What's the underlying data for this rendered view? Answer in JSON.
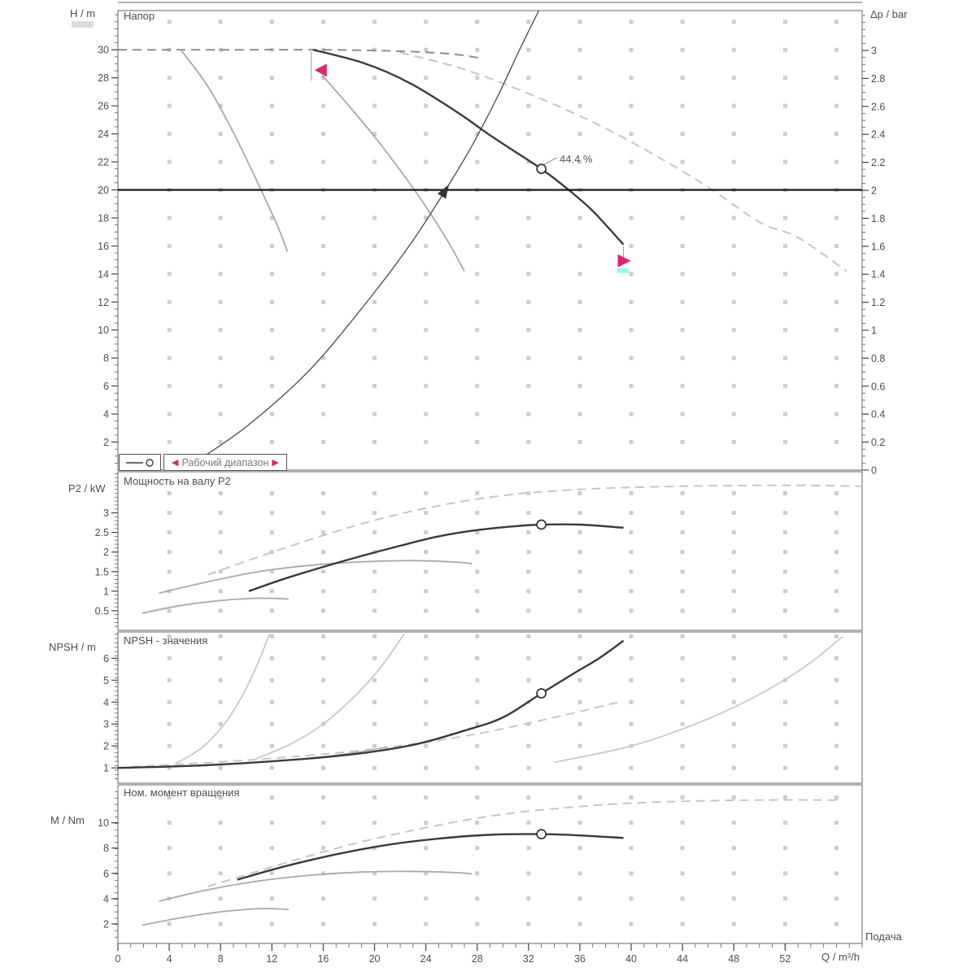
{
  "colors": {
    "accent": "#e0246e",
    "cyan_mark": "#9ef2f2",
    "grid_dot": "#cdcdcd",
    "main_curve": "#3a3a3a",
    "gray_curve": "#a9a9a9",
    "light_curve": "#c9c9c9",
    "frame": "#666666",
    "head_line": "#161616"
  },
  "legend": {
    "series_symbol": "duty-curve-with-marker",
    "range_label": "Рабочий диапазон"
  },
  "duty": {
    "efficiency_label": "44.4 %"
  },
  "x_axis": {
    "label": "Q / m³/h",
    "flow_label": "Подача",
    "lim": [
      0,
      58
    ],
    "major_ticks": [
      0,
      4,
      8,
      12,
      16,
      20,
      24,
      28,
      32,
      36,
      40,
      44,
      48,
      52
    ],
    "minor_step": 1
  },
  "chart_data": [
    {
      "type": "line",
      "id": "head",
      "title": "Напор",
      "ylabel_left": "H / m",
      "ylabel_right": "Δp / bar",
      "ylim": [
        0,
        32.8
      ],
      "yticks": [
        2,
        4,
        6,
        8,
        10,
        12,
        14,
        16,
        18,
        20,
        22,
        24,
        26,
        28,
        30
      ],
      "yminor": 0.5,
      "right_axis": {
        "lim": [
          0,
          3.285
        ],
        "ticks": [
          0,
          0.2,
          0.4,
          0.6,
          0.8,
          1,
          1.2,
          1.4,
          1.6,
          1.8,
          2,
          2.2,
          2.4,
          2.6,
          2.8,
          3
        ],
        "minor": 0.05
      },
      "grid": {
        "row_start": 2,
        "row_step": 2
      },
      "series": [
        {
          "name": "max-speed-curve-dashed",
          "role": "dash_dark",
          "points": [
            [
              0,
              30
            ],
            [
              8,
              30
            ],
            [
              16,
              30
            ],
            [
              22,
              29.9
            ],
            [
              26,
              29.7
            ],
            [
              28.3,
              29.4
            ]
          ]
        },
        {
          "name": "family-curve-dashed",
          "role": "dash_light",
          "points": [
            [
              22,
              29.8
            ],
            [
              26.3,
              28.8
            ],
            [
              30,
              27.6
            ],
            [
              34,
              26.1
            ],
            [
              38,
              24.4
            ],
            [
              42,
              22.4
            ],
            [
              46,
              20.2
            ],
            [
              50,
              17.7
            ],
            [
              53,
              16.6
            ],
            [
              56.8,
              14.2
            ]
          ]
        },
        {
          "name": "iso-curve-left",
          "role": "gray",
          "points": [
            [
              4.9,
              30
            ],
            [
              7,
              27.4
            ],
            [
              9,
              24.1
            ],
            [
              11,
              20.3
            ],
            [
              12.5,
              17.3
            ],
            [
              13.2,
              15.6
            ]
          ]
        },
        {
          "name": "iso-curve-mid",
          "role": "gray",
          "points": [
            [
              15.9,
              28.2
            ],
            [
              18,
              26
            ],
            [
              20,
              23.8
            ],
            [
              22,
              21.4
            ],
            [
              24,
              18.8
            ],
            [
              25.8,
              16.2
            ],
            [
              27,
              14.2
            ]
          ]
        },
        {
          "name": "system-curve",
          "role": "system",
          "points": [
            [
              5.4,
              0.2
            ],
            [
              10,
              3.1
            ],
            [
              15,
              7.2
            ],
            [
              20,
              12.7
            ],
            [
              23,
              16.4
            ],
            [
              25.4,
              19.8
            ],
            [
              27.5,
              23
            ],
            [
              29.5,
              26.5
            ],
            [
              31.3,
              30
            ],
            [
              32.8,
              32.8
            ]
          ]
        },
        {
          "name": "pump-curve",
          "role": "main",
          "points": [
            [
              15.2,
              30
            ],
            [
              17,
              29.6
            ],
            [
              19,
              29.1
            ],
            [
              21,
              28.4
            ],
            [
              23,
              27.5
            ],
            [
              25,
              26.4
            ],
            [
              27,
              25.2
            ],
            [
              29,
              23.9
            ],
            [
              31,
              22.7
            ],
            [
              33,
              21.5
            ],
            [
              35,
              20.1
            ],
            [
              37,
              18.5
            ],
            [
              39.4,
              16.1
            ]
          ]
        }
      ],
      "annotations": [
        {
          "type": "hline",
          "v": 20
        },
        {
          "type": "flag",
          "q": 15.2,
          "v": 30,
          "dir": "left"
        },
        {
          "type": "flag",
          "q": 39.4,
          "v": 16.1,
          "dir": "right"
        },
        {
          "type": "arrow",
          "q": 25.4,
          "v": 19.8,
          "angle": -58
        },
        {
          "type": "leader",
          "q1": 33.2,
          "v1": 21.8,
          "q2": 34.2,
          "v2": 22.3
        },
        {
          "type": "duty",
          "q": 33,
          "v": 21.5
        }
      ]
    },
    {
      "type": "line",
      "id": "power",
      "title": "Мощность на валу P2",
      "ylabel_left": "P2 / kW",
      "ylim": [
        0,
        4.05
      ],
      "yticks": [
        0.5,
        1,
        1.5,
        2,
        2.5,
        3
      ],
      "yminor": 0.1,
      "grid": {
        "row_start": 0.5,
        "row_step": 0.5
      },
      "series": [
        {
          "name": "power-max-dashed",
          "role": "dash_light",
          "points": [
            [
              7,
              1.42
            ],
            [
              11,
              1.88
            ],
            [
              15,
              2.32
            ],
            [
              19,
              2.72
            ],
            [
              23,
              3.05
            ],
            [
              27,
              3.3
            ],
            [
              31,
              3.48
            ],
            [
              35,
              3.58
            ],
            [
              39,
              3.64
            ],
            [
              44,
              3.68
            ],
            [
              49,
              3.7
            ],
            [
              54,
              3.7
            ],
            [
              58,
              3.68
            ]
          ]
        },
        {
          "name": "power-low-1",
          "role": "gray",
          "points": [
            [
              3.2,
              0.95
            ],
            [
              7,
              1.24
            ],
            [
              11,
              1.5
            ],
            [
              15,
              1.66
            ],
            [
              19,
              1.75
            ],
            [
              23,
              1.78
            ],
            [
              26.5,
              1.74
            ],
            [
              27.6,
              1.7
            ]
          ]
        },
        {
          "name": "power-low-2",
          "role": "gray",
          "points": [
            [
              1.9,
              0.44
            ],
            [
              5,
              0.64
            ],
            [
              8,
              0.76
            ],
            [
              11,
              0.82
            ],
            [
              13.3,
              0.8
            ]
          ]
        },
        {
          "name": "power-curve",
          "role": "main",
          "points": [
            [
              10.2,
              1.0
            ],
            [
              13,
              1.32
            ],
            [
              16,
              1.62
            ],
            [
              19,
              1.9
            ],
            [
              22,
              2.16
            ],
            [
              25,
              2.4
            ],
            [
              28,
              2.56
            ],
            [
              31,
              2.66
            ],
            [
              33,
              2.7
            ],
            [
              36,
              2.7
            ],
            [
              39.4,
              2.62
            ]
          ]
        }
      ],
      "annotations": [
        {
          "type": "duty",
          "q": 33,
          "v": 2.7
        }
      ]
    },
    {
      "type": "line",
      "id": "npsh",
      "title": "NPSH - значения",
      "ylabel_left": "NPSH / m",
      "ylim": [
        0.3,
        7.2
      ],
      "yticks": [
        1,
        2,
        3,
        4,
        5,
        6
      ],
      "yminor": 0.2,
      "grid": {
        "row_start": 1,
        "row_step": 1
      },
      "series": [
        {
          "name": "npsh-dashed",
          "role": "dash_light",
          "points": [
            [
              1,
              1.05
            ],
            [
              10,
              1.35
            ],
            [
              19,
              1.8
            ],
            [
              27,
              2.45
            ],
            [
              34,
              3.3
            ],
            [
              39,
              4.0
            ]
          ]
        },
        {
          "name": "npsh-steep-left",
          "role": "light",
          "points": [
            [
              4.5,
              1.2
            ],
            [
              6.5,
              1.9
            ],
            [
              8.3,
              3.0
            ],
            [
              9.8,
              4.4
            ],
            [
              11,
              5.9
            ],
            [
              11.8,
              7.1
            ]
          ]
        },
        {
          "name": "npsh-steep-mid",
          "role": "light",
          "points": [
            [
              10.5,
              1.35
            ],
            [
              13.5,
              2.1
            ],
            [
              16,
              3.0
            ],
            [
              18.5,
              4.3
            ],
            [
              20.5,
              5.6
            ],
            [
              22.3,
              7.1
            ]
          ]
        },
        {
          "name": "npsh-right",
          "role": "light",
          "points": [
            [
              34,
              1.25
            ],
            [
              40,
              2.0
            ],
            [
              45,
              3.0
            ],
            [
              49.5,
              4.2
            ],
            [
              53.5,
              5.6
            ],
            [
              56.5,
              7.0
            ]
          ]
        },
        {
          "name": "npsh-companion",
          "role": "thin",
          "points": [
            [
              0,
              1.0
            ],
            [
              5,
              1.08
            ],
            [
              10,
              1.22
            ],
            [
              15,
              1.45
            ],
            [
              19,
              1.75
            ],
            [
              21,
              1.95
            ]
          ]
        },
        {
          "name": "npsh-curve",
          "role": "main",
          "points": [
            [
              0,
              1.0
            ],
            [
              6,
              1.1
            ],
            [
              12,
              1.3
            ],
            [
              18,
              1.6
            ],
            [
              23,
              2.05
            ],
            [
              27,
              2.7
            ],
            [
              30,
              3.3
            ],
            [
              33,
              4.4
            ],
            [
              35.5,
              5.3
            ],
            [
              37.5,
              6.0
            ],
            [
              39.4,
              6.8
            ]
          ]
        }
      ],
      "annotations": [
        {
          "type": "duty",
          "q": 33,
          "v": 4.4
        }
      ]
    },
    {
      "type": "line",
      "id": "torque",
      "title": "Ном. момент вращения",
      "ylabel_left": "M / Nm",
      "ylim": [
        0.45,
        13
      ],
      "yticks": [
        2,
        4,
        6,
        8,
        10
      ],
      "yminor": 0.5,
      "grid": {
        "row_start": 2,
        "row_step": 2
      },
      "series": [
        {
          "name": "torque-max-dashed",
          "role": "dash_light",
          "points": [
            [
              7,
              4.95
            ],
            [
              11,
              6.2
            ],
            [
              15,
              7.4
            ],
            [
              19,
              8.5
            ],
            [
              23,
              9.4
            ],
            [
              27,
              10.2
            ],
            [
              31,
              10.8
            ],
            [
              35,
              11.2
            ],
            [
              39,
              11.5
            ],
            [
              44,
              11.7
            ],
            [
              50,
              11.8
            ],
            [
              56,
              11.8
            ]
          ]
        },
        {
          "name": "torque-low-1",
          "role": "gray",
          "points": [
            [
              3.2,
              3.8
            ],
            [
              7,
              4.7
            ],
            [
              11,
              5.4
            ],
            [
              15,
              5.85
            ],
            [
              19,
              6.1
            ],
            [
              23,
              6.15
            ],
            [
              26.5,
              6.05
            ],
            [
              27.6,
              5.95
            ]
          ]
        },
        {
          "name": "torque-low-2",
          "role": "gray",
          "points": [
            [
              1.9,
              1.9
            ],
            [
              5,
              2.5
            ],
            [
              8,
              2.95
            ],
            [
              11,
              3.2
            ],
            [
              13.3,
              3.15
            ]
          ]
        },
        {
          "name": "torque-curve",
          "role": "main",
          "points": [
            [
              9.3,
              5.5
            ],
            [
              13,
              6.55
            ],
            [
              17,
              7.5
            ],
            [
              21,
              8.25
            ],
            [
              25,
              8.75
            ],
            [
              29,
              9.05
            ],
            [
              33,
              9.1
            ],
            [
              36,
              9.0
            ],
            [
              39.4,
              8.8
            ]
          ]
        }
      ],
      "annotations": [
        {
          "type": "duty",
          "q": 33,
          "v": 9.1
        }
      ]
    }
  ]
}
